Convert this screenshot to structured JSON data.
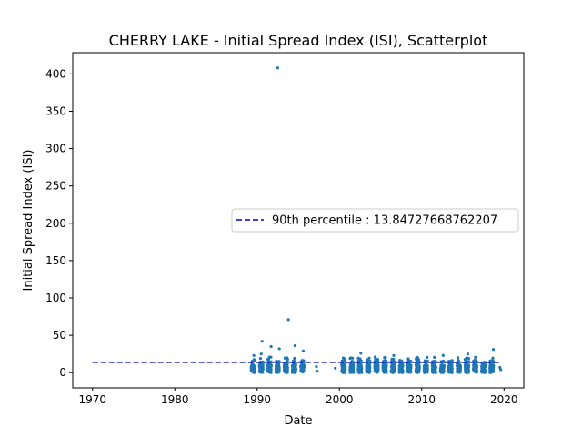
{
  "chart_data": {
    "type": "scatter",
    "title": "CHERRY LAKE - Initial Spread Index (ISI), Scatterplot",
    "xlabel": "Date",
    "ylabel": "Initial Spread Index (ISI)",
    "xlim": [
      1967.6,
      2022.4
    ],
    "ylim": [
      -20.4,
      428.4
    ],
    "xticks": [
      "1970",
      "1980",
      "1990",
      "2000",
      "2010",
      "2020"
    ],
    "yticks": [
      "0",
      "50",
      "100",
      "150",
      "200",
      "250",
      "300",
      "350",
      "400"
    ],
    "legend": {
      "position": "center-right",
      "label": "90th percentile : 13.84727668762207"
    },
    "reference_line": {
      "y": 13.84727668762207,
      "x_start": 1970,
      "x_end": 2019.5,
      "color": "#0000cd",
      "style": "dashed"
    },
    "series_color": "#1f77b4",
    "seasons": [
      1989.5,
      1990.5,
      1991.5,
      1992.5,
      1993.5,
      1994.5,
      1995.5,
      2000.5,
      2001.5,
      2002.5,
      2003.5,
      2004.5,
      2005.5,
      2006.5,
      2007.5,
      2008.5,
      2009.5,
      2010.5,
      2011.5,
      2012.5,
      2013.5,
      2014.5,
      2015.5,
      2016.5,
      2017.5,
      2018.5
    ],
    "notable_points": [
      {
        "x": 1992.5,
        "y": 408
      },
      {
        "x": 1993.8,
        "y": 71
      },
      {
        "x": 1990.6,
        "y": 42
      },
      {
        "x": 1994.6,
        "y": 36
      },
      {
        "x": 1991.7,
        "y": 35
      },
      {
        "x": 1992.7,
        "y": 32
      },
      {
        "x": 1995.6,
        "y": 29
      },
      {
        "x": 1990.5,
        "y": 25
      },
      {
        "x": 1989.6,
        "y": 23
      },
      {
        "x": 2002.6,
        "y": 26
      },
      {
        "x": 2018.7,
        "y": 31
      },
      {
        "x": 2015.6,
        "y": 25
      },
      {
        "x": 2006.6,
        "y": 23
      },
      {
        "x": 2012.6,
        "y": 23
      },
      {
        "x": 1997.2,
        "y": 8
      },
      {
        "x": 1997.3,
        "y": 2
      },
      {
        "x": 1999.5,
        "y": 6
      },
      {
        "x": 2019.5,
        "y": 7
      },
      {
        "x": 2019.6,
        "y": 4
      }
    ]
  }
}
